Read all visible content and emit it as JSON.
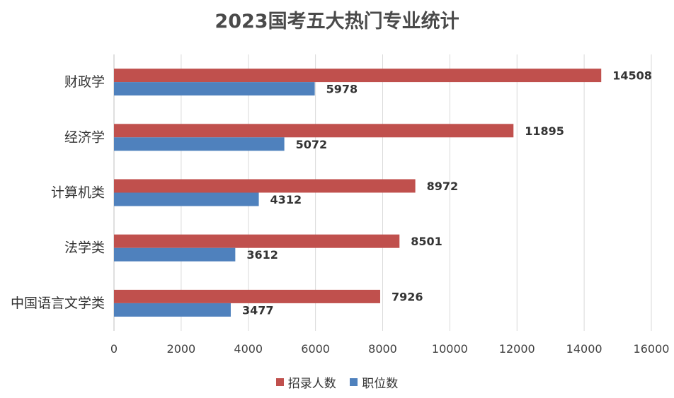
{
  "chart_data": {
    "type": "bar",
    "orientation": "horizontal",
    "title": "2023国考五大热门专业统计",
    "categories": [
      "财政学",
      "经济学",
      "计算机类",
      "法学类",
      "中国语言文学类"
    ],
    "series": [
      {
        "name": "招录人数",
        "color": "#c0504d",
        "values": [
          14508,
          11895,
          8972,
          8501,
          7926
        ]
      },
      {
        "name": "职位数",
        "color": "#4f81bd",
        "values": [
          5978,
          5072,
          4312,
          3612,
          3477
        ]
      }
    ],
    "xlim": [
      0,
      16000
    ],
    "x_ticks": [
      "0",
      "2000",
      "4000",
      "6000",
      "8000",
      "10000",
      "12000",
      "14000",
      "16000"
    ],
    "grid": "vertical",
    "legend_position": "bottom"
  }
}
